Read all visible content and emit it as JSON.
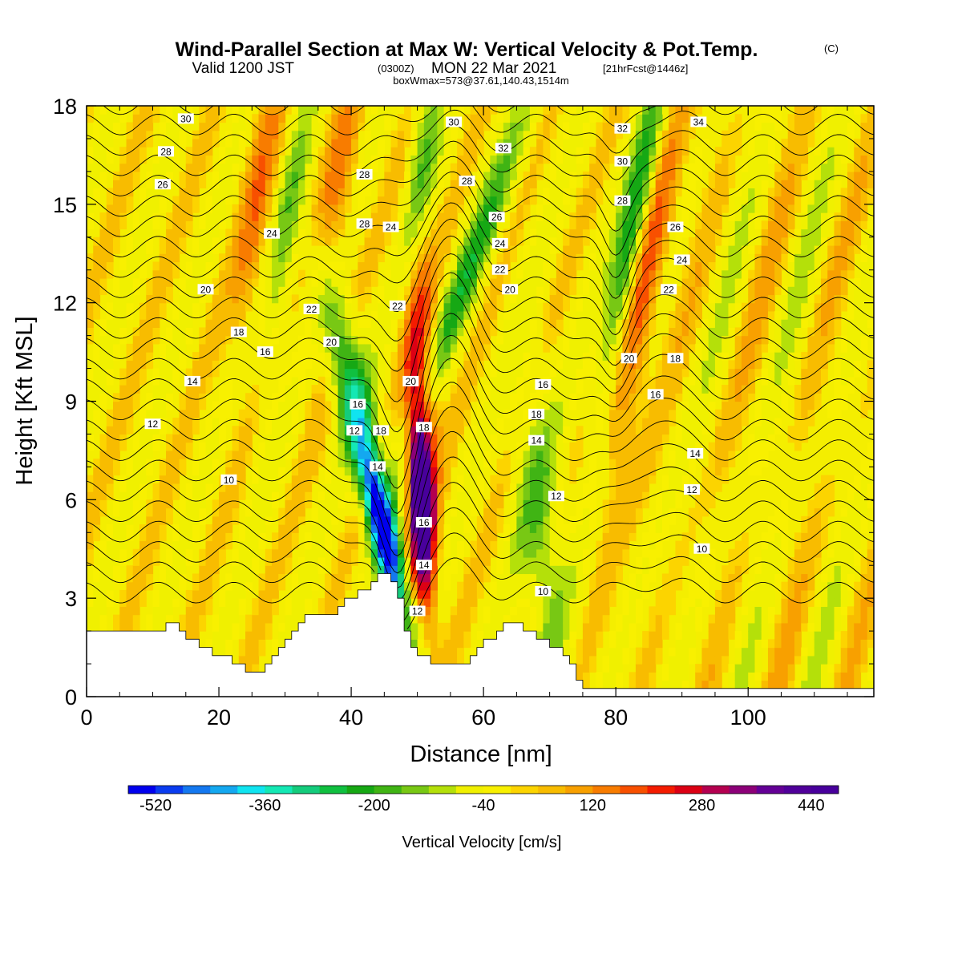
{
  "title": {
    "line1": "Wind-Parallel Section at Max W: Vertical Velocity & Pot.Temp.",
    "copyright": "(C)",
    "valid_prefix": "Valid 1200 JST",
    "valid_utc": "(0300Z)",
    "valid_date": "MON 22 Mar 2021",
    "valid_fcst": "[21hrFcst@1446z]",
    "line3": "boxWmax=573@37.61,140.43,1514m"
  },
  "colorbar": {
    "label": "Vertical Velocity [cm/s]",
    "tick_labels": [
      "-520",
      "-360",
      "-200",
      "-40",
      "120",
      "280",
      "440"
    ],
    "tick_values": [
      -520,
      -360,
      -200,
      -40,
      120,
      280,
      440
    ],
    "min": -560,
    "max": 480,
    "step": 40,
    "colors": [
      "#0000ee",
      "#0a3cf0",
      "#1478f0",
      "#14a8f0",
      "#10e4f0",
      "#14e8b4",
      "#14cc7c",
      "#10c040",
      "#16a814",
      "#40b414",
      "#78c814",
      "#b4e00a",
      "#f0f000",
      "#f8f000",
      "#fcd400",
      "#f8bc00",
      "#f8a000",
      "#f87c00",
      "#f85000",
      "#f41c00",
      "#dc0014",
      "#b40050",
      "#8c0078",
      "#640096",
      "#50009a",
      "#48009c"
    ]
  },
  "chart_data": {
    "type": "heatmap",
    "title": "Wind-Parallel Section at Max W: Vertical Velocity & Pot.Temp.",
    "xlabel": "Distance [nm]",
    "ylabel": "Height [Kft MSL]",
    "xlim": [
      0,
      119
    ],
    "ylim": [
      0,
      18
    ],
    "xticks": [
      "0",
      "20",
      "40",
      "60",
      "80",
      "100"
    ],
    "yticks": [
      "0",
      "3",
      "6",
      "9",
      "12",
      "15",
      "18"
    ],
    "filled_field": "Vertical Velocity [cm/s]",
    "contour_field": "Pot.Temp.",
    "vertical_velocity_features": [
      {
        "x": 46,
        "z": 5,
        "value": -520,
        "kind": "downdraft"
      },
      {
        "x": 51,
        "z": 6,
        "value": 480,
        "kind": "updraft"
      },
      {
        "x": 41,
        "z": 10,
        "value": -250,
        "kind": "downdraft"
      },
      {
        "x": 56,
        "z": 16,
        "value": -200,
        "kind": "downdraft"
      },
      {
        "x": 80,
        "z": 14,
        "value": -240,
        "kind": "downdraft"
      },
      {
        "x": 83,
        "z": 12,
        "value": 200,
        "kind": "updraft"
      }
    ],
    "terrain_height_kft": [
      [
        0,
        1.9
      ],
      [
        10,
        1.9
      ],
      [
        12,
        2.3
      ],
      [
        14,
        2.0
      ],
      [
        17,
        1.5
      ],
      [
        20,
        1.3
      ],
      [
        23,
        1.0
      ],
      [
        25,
        0.7
      ],
      [
        28,
        1.2
      ],
      [
        31,
        1.9
      ],
      [
        33,
        2.5
      ],
      [
        36,
        2.4
      ],
      [
        38,
        2.8
      ],
      [
        40,
        3.1
      ],
      [
        43,
        3.5
      ],
      [
        45,
        3.8
      ],
      [
        47,
        3.0
      ],
      [
        48,
        2.0
      ],
      [
        50,
        1.2
      ],
      [
        53,
        1.0
      ],
      [
        57,
        1.0
      ],
      [
        60,
        1.7
      ],
      [
        63,
        2.2
      ],
      [
        65,
        2.2
      ],
      [
        68,
        1.8
      ],
      [
        71,
        1.4
      ],
      [
        73,
        0.9
      ],
      [
        75,
        0.3
      ],
      [
        119,
        0.3
      ]
    ],
    "contour_labels": [
      {
        "text": "30",
        "x": 15,
        "z": 17.6
      },
      {
        "text": "28",
        "x": 12,
        "z": 16.6
      },
      {
        "text": "26",
        "x": 11.5,
        "z": 15.6
      },
      {
        "text": "24",
        "x": 28,
        "z": 14.1
      },
      {
        "text": "20",
        "x": 18,
        "z": 12.4
      },
      {
        "text": "18",
        "x": 23,
        "z": 11.1
      },
      {
        "text": "16",
        "x": 27,
        "z": 10.5
      },
      {
        "text": "14",
        "x": 16,
        "z": 9.6
      },
      {
        "text": "12",
        "x": 10,
        "z": 8.3
      },
      {
        "text": "10",
        "x": 21.5,
        "z": 6.6
      },
      {
        "text": "22",
        "x": 34,
        "z": 11.8
      },
      {
        "text": "20",
        "x": 37,
        "z": 10.8
      },
      {
        "text": "28",
        "x": 42,
        "z": 15.9
      },
      {
        "text": "28",
        "x": 42,
        "z": 14.4
      },
      {
        "text": "24",
        "x": 46,
        "z": 14.3
      },
      {
        "text": "22",
        "x": 47,
        "z": 11.9
      },
      {
        "text": "20",
        "x": 49,
        "z": 9.6
      },
      {
        "text": "16",
        "x": 41,
        "z": 8.9
      },
      {
        "text": "12",
        "x": 40.5,
        "z": 8.1
      },
      {
        "text": "18",
        "x": 44.5,
        "z": 8.1
      },
      {
        "text": "14",
        "x": 44,
        "z": 7.0
      },
      {
        "text": "18",
        "x": 51,
        "z": 8.2
      },
      {
        "text": "16",
        "x": 51,
        "z": 5.3
      },
      {
        "text": "14",
        "x": 51,
        "z": 4.0
      },
      {
        "text": "12",
        "x": 50,
        "z": 2.6
      },
      {
        "text": "30",
        "x": 55.5,
        "z": 17.5
      },
      {
        "text": "32",
        "x": 63,
        "z": 16.7
      },
      {
        "text": "28",
        "x": 57.5,
        "z": 15.7
      },
      {
        "text": "26",
        "x": 62,
        "z": 14.6
      },
      {
        "text": "24",
        "x": 62.5,
        "z": 13.8
      },
      {
        "text": "22",
        "x": 62.5,
        "z": 13.0
      },
      {
        "text": "20",
        "x": 64,
        "z": 12.4
      },
      {
        "text": "16",
        "x": 69,
        "z": 9.5
      },
      {
        "text": "18",
        "x": 68,
        "z": 8.6
      },
      {
        "text": "14",
        "x": 68,
        "z": 7.8
      },
      {
        "text": "12",
        "x": 71,
        "z": 6.1
      },
      {
        "text": "10",
        "x": 69,
        "z": 3.2
      },
      {
        "text": "32",
        "x": 81,
        "z": 17.3
      },
      {
        "text": "30",
        "x": 81,
        "z": 16.3
      },
      {
        "text": "28",
        "x": 81,
        "z": 15.1
      },
      {
        "text": "26",
        "x": 89,
        "z": 14.3
      },
      {
        "text": "24",
        "x": 90,
        "z": 13.3
      },
      {
        "text": "22",
        "x": 88,
        "z": 12.4
      },
      {
        "text": "20",
        "x": 82,
        "z": 10.3
      },
      {
        "text": "18",
        "x": 89,
        "z": 10.3
      },
      {
        "text": "16",
        "x": 86,
        "z": 9.2
      },
      {
        "text": "14",
        "x": 92,
        "z": 7.4
      },
      {
        "text": "12",
        "x": 91.5,
        "z": 6.3
      },
      {
        "text": "10",
        "x": 93,
        "z": 4.5
      },
      {
        "text": "34",
        "x": 92.5,
        "z": 17.5
      }
    ]
  }
}
